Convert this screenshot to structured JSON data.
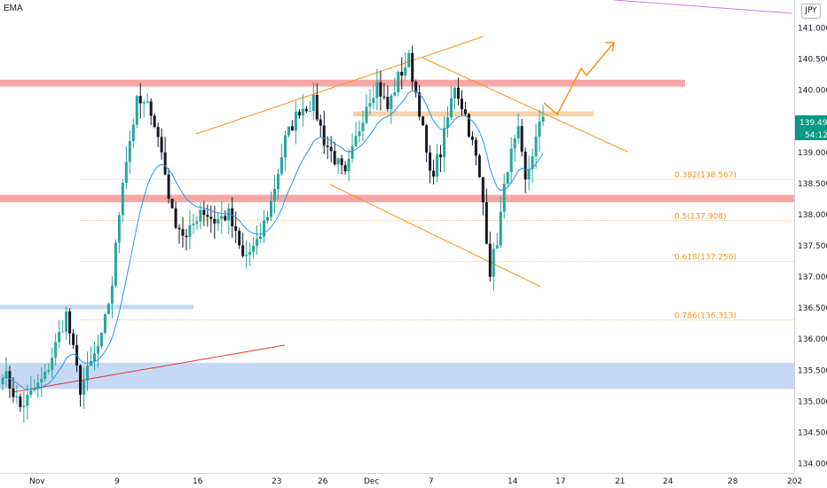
{
  "indicator_label": "EMA",
  "currency": "JPY",
  "price_badge": {
    "price": "139.494",
    "countdown": "54:12",
    "color": "#089981"
  },
  "colors": {
    "up": "#26a69a",
    "down": "#131722",
    "ema": "#2196f3",
    "resistance_zone": "#f7a6a6",
    "support_zone": "#c6d8f5",
    "trendline_orange": "#f7931a",
    "trendline_red": "#e53935",
    "trendline_purple": "#c77ddb"
  },
  "chart_data": {
    "type": "candlestick",
    "y_axis": {
      "ylim": [
        133.85,
        141.45
      ],
      "ticks": [
        "141.000",
        "140.500",
        "140.000",
        "139.500",
        "139.000",
        "138.500",
        "138.000",
        "137.500",
        "137.000",
        "136.500",
        "136.000",
        "135.500",
        "135.000",
        "134.500",
        "134.000"
      ]
    },
    "x_axis": {
      "ticks": [
        "Nov",
        "9",
        "16",
        "23",
        "26",
        "Dec",
        "7",
        "14",
        "17",
        "21",
        "24",
        "28",
        "202"
      ]
    },
    "fib_levels": [
      {
        "label": "0.382(138.567)",
        "value": 138.567
      },
      {
        "label": "0.5(137.908)",
        "value": 137.908
      },
      {
        "label": "0.618(137.250)",
        "value": 137.25
      },
      {
        "label": "0.786(136.313)",
        "value": 136.313
      }
    ],
    "zones": [
      {
        "name": "resistance",
        "low": 140.06,
        "high": 140.17
      },
      {
        "name": "resistance",
        "low": 138.2,
        "high": 138.32
      },
      {
        "name": "support",
        "low": 135.2,
        "high": 135.62
      },
      {
        "name": "support",
        "low": 136.48,
        "high": 136.55
      },
      {
        "name": "pivot",
        "low": 139.58,
        "high": 139.66
      }
    ],
    "series_path": [
      {
        "bar": 0,
        "price": 135.5
      },
      {
        "bar": 5,
        "price": 134.9
      },
      {
        "bar": 12,
        "price": 135.4
      },
      {
        "bar": 18,
        "price": 136.4
      },
      {
        "bar": 22,
        "price": 135.2
      },
      {
        "bar": 28,
        "price": 136.0
      },
      {
        "bar": 31,
        "price": 136.9
      },
      {
        "bar": 34,
        "price": 138.6
      },
      {
        "bar": 38,
        "price": 139.8
      },
      {
        "bar": 42,
        "price": 139.7
      },
      {
        "bar": 45,
        "price": 139.0
      },
      {
        "bar": 48,
        "price": 138.0
      },
      {
        "bar": 52,
        "price": 137.6
      },
      {
        "bar": 56,
        "price": 138.1
      },
      {
        "bar": 60,
        "price": 137.9
      },
      {
        "bar": 64,
        "price": 138.0
      },
      {
        "bar": 68,
        "price": 137.3
      },
      {
        "bar": 72,
        "price": 137.5
      },
      {
        "bar": 76,
        "price": 138.2
      },
      {
        "bar": 80,
        "price": 139.2
      },
      {
        "bar": 84,
        "price": 139.7
      },
      {
        "bar": 88,
        "price": 139.8
      },
      {
        "bar": 91,
        "price": 139.2
      },
      {
        "bar": 94,
        "price": 138.9
      },
      {
        "bar": 97,
        "price": 138.6
      },
      {
        "bar": 100,
        "price": 139.2
      },
      {
        "bar": 103,
        "price": 139.8
      },
      {
        "bar": 106,
        "price": 140.1
      },
      {
        "bar": 109,
        "price": 139.7
      },
      {
        "bar": 112,
        "price": 140.2
      },
      {
        "bar": 115,
        "price": 140.5
      },
      {
        "bar": 118,
        "price": 139.7
      },
      {
        "bar": 121,
        "price": 138.6
      },
      {
        "bar": 124,
        "price": 139.0
      },
      {
        "bar": 128,
        "price": 140.1
      },
      {
        "bar": 131,
        "price": 139.6
      },
      {
        "bar": 134,
        "price": 138.9
      },
      {
        "bar": 136,
        "price": 138.2
      },
      {
        "bar": 138,
        "price": 137.1
      },
      {
        "bar": 140,
        "price": 137.6
      },
      {
        "bar": 143,
        "price": 138.8
      },
      {
        "bar": 146,
        "price": 139.3
      },
      {
        "bar": 148,
        "price": 138.5
      },
      {
        "bar": 150,
        "price": 139.0
      },
      {
        "bar": 153,
        "price": 139.6
      }
    ]
  }
}
